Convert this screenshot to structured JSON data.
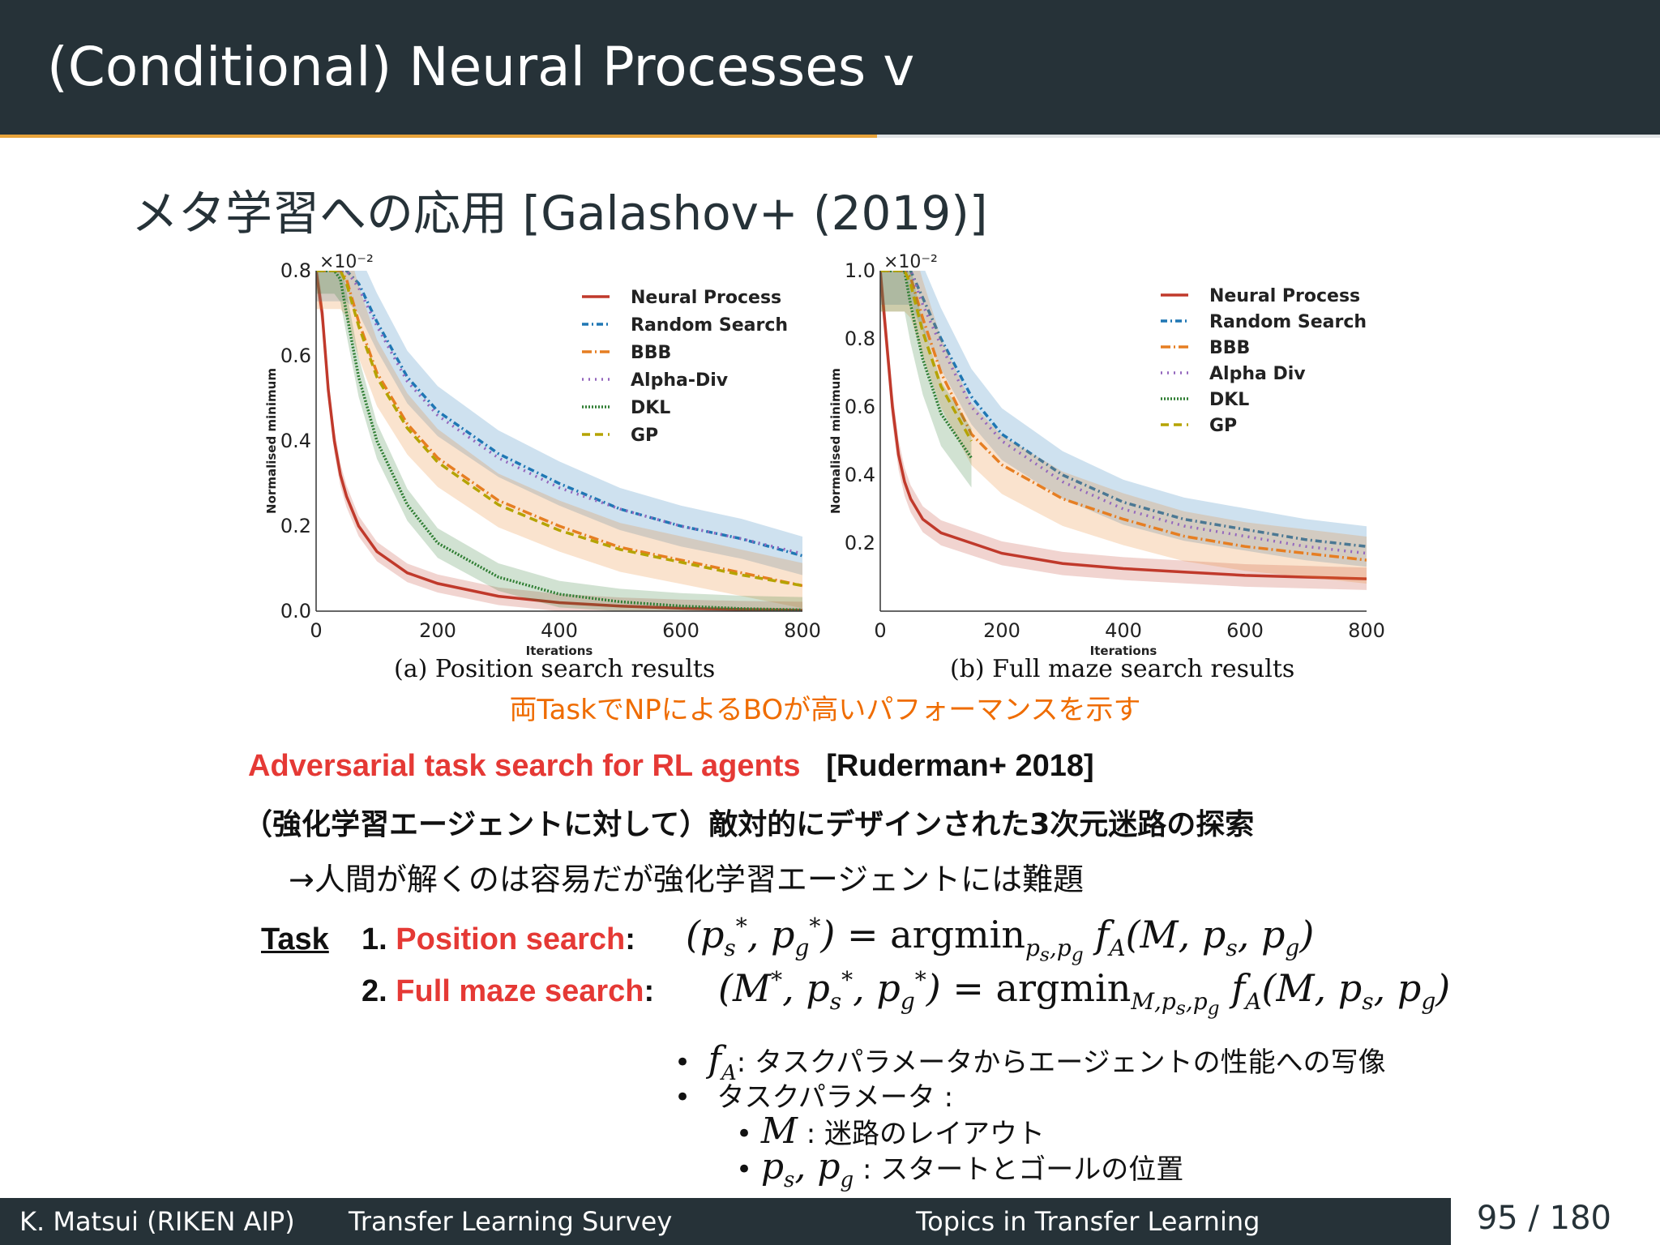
{
  "slide": {
    "title": "(Conditional) Neural Processes v",
    "subtitle": "メタ学習への応用 [Galashov+ (2019)]",
    "highlight": "両TaskでNPによるBOが高いパフォーマンスを示す"
  },
  "captions": {
    "a": "(a)  Position search results",
    "b": "(b)  Full maze search results"
  },
  "text": {
    "heading_red": "Adversarial task search for RL agents",
    "heading_ref": "[Ruderman+ 2018]",
    "line1": "（強化学習エージェントに対して）敵対的にデザインされた3次元迷路の探索",
    "line2": "→人間が解くのは容易だが強化学習エージェントには難題",
    "task_label": "Task",
    "t1_num": "1.",
    "t1_name": "Position search",
    "t1_colon": ":",
    "t2_num": "2.",
    "t2_name": "Full maze search",
    "t2_colon": ":",
    "b1": ": タスクパラメータからエージェントの性能への写像",
    "b2": "タスクパラメータ :",
    "b3": ": 迷路のレイアウト",
    "b4": ": スタートとゴールの位置"
  },
  "footer": {
    "author": "K. Matsui (RIKEN AIP)",
    "talk": "Transfer Learning Survey",
    "section": "Topics in Transfer Learning",
    "page": "95 / 180"
  },
  "chart_data": [
    {
      "type": "line",
      "caption": "(a) Position search results",
      "xlabel": "Iterations",
      "ylabel": "Normalised minimum",
      "scale_label": "×10⁻²",
      "xlim": [
        0,
        800
      ],
      "ylim": [
        0,
        0.8
      ],
      "xticks": [
        0,
        200,
        400,
        600,
        800
      ],
      "yticks": [
        0.0,
        0.2,
        0.4,
        0.6,
        0.8
      ],
      "legend_position": "top-right",
      "x": [
        0,
        10,
        20,
        30,
        40,
        50,
        70,
        100,
        150,
        200,
        300,
        400,
        500,
        600,
        700,
        800
      ],
      "series": [
        {
          "name": "Neural Process",
          "color": "#c0392b",
          "dash": "solid",
          "band": 0.02,
          "values": [
            0.8,
            0.7,
            0.52,
            0.4,
            0.32,
            0.27,
            0.2,
            0.14,
            0.09,
            0.065,
            0.035,
            0.02,
            0.012,
            0.007,
            0.004,
            0.002
          ]
        },
        {
          "name": "Random Search",
          "color": "#1f77b4",
          "dash": "8,4,2,4",
          "band": 0.04,
          "values": [
            0.8,
            0.8,
            0.8,
            0.8,
            0.8,
            0.8,
            0.77,
            0.68,
            0.55,
            0.47,
            0.37,
            0.3,
            0.24,
            0.2,
            0.17,
            0.13
          ]
        },
        {
          "name": "BBB",
          "color": "#e67e22",
          "dash": "12,4,2,4",
          "band": 0.05,
          "values": [
            0.8,
            0.8,
            0.8,
            0.8,
            0.8,
            0.78,
            0.68,
            0.56,
            0.44,
            0.36,
            0.26,
            0.2,
            0.15,
            0.12,
            0.09,
            0.06
          ]
        },
        {
          "name": "Alpha-Div",
          "color": "#9467bd",
          "dash": "2,6",
          "band": 0.0,
          "values": [
            0.8,
            0.8,
            0.8,
            0.8,
            0.8,
            0.8,
            0.76,
            0.67,
            0.54,
            0.46,
            0.36,
            0.29,
            0.24,
            0.2,
            0.17,
            0.135
          ]
        },
        {
          "name": "DKL",
          "color": "#2e7d32",
          "dash": "2,2",
          "band": 0.03,
          "values": [
            0.8,
            0.8,
            0.8,
            0.8,
            0.78,
            0.7,
            0.55,
            0.4,
            0.25,
            0.16,
            0.08,
            0.04,
            0.022,
            0.012,
            0.006,
            0.003
          ]
        },
        {
          "name": "GP",
          "color": "#b5a300",
          "dash": "10,6",
          "band": 0.0,
          "values": [
            0.8,
            0.8,
            0.8,
            0.8,
            0.8,
            0.77,
            0.67,
            0.55,
            0.43,
            0.35,
            0.25,
            0.19,
            0.145,
            0.115,
            0.085,
            0.06
          ]
        }
      ]
    },
    {
      "type": "line",
      "caption": "(b) Full maze search results",
      "xlabel": "Iterations",
      "ylabel": "Normalised minimum",
      "scale_label": "×10⁻²",
      "xlim": [
        0,
        800
      ],
      "ylim": [
        0,
        1.0
      ],
      "xticks": [
        0,
        200,
        400,
        600,
        800
      ],
      "yticks": [
        0.2,
        0.4,
        0.6,
        0.8,
        1.0
      ],
      "legend_position": "top-right",
      "x": [
        0,
        10,
        20,
        30,
        40,
        50,
        70,
        100,
        150,
        200,
        300,
        400,
        500,
        600,
        700,
        800
      ],
      "series": [
        {
          "name": "Neural Process",
          "color": "#c0392b",
          "dash": "solid",
          "band": 0.03,
          "values": [
            1.0,
            0.8,
            0.6,
            0.46,
            0.38,
            0.33,
            0.27,
            0.23,
            0.2,
            0.17,
            0.14,
            0.125,
            0.115,
            0.105,
            0.1,
            0.095
          ]
        },
        {
          "name": "Random Search",
          "color": "#1f77b4",
          "dash": "8,4,2,4",
          "band": 0.05,
          "values": [
            1.0,
            1.0,
            1.0,
            1.0,
            1.0,
            1.0,
            0.92,
            0.8,
            0.63,
            0.52,
            0.4,
            0.32,
            0.27,
            0.24,
            0.21,
            0.19
          ]
        },
        {
          "name": "BBB",
          "color": "#e67e22",
          "dash": "12,4,2,4",
          "band": 0.06,
          "values": [
            1.0,
            1.0,
            1.0,
            1.0,
            1.0,
            0.98,
            0.86,
            0.7,
            0.52,
            0.43,
            0.33,
            0.27,
            0.22,
            0.19,
            0.17,
            0.15
          ]
        },
        {
          "name": "Alpha Div",
          "color": "#9467bd",
          "dash": "2,6",
          "band": 0.0,
          "values": [
            1.0,
            1.0,
            1.0,
            1.0,
            1.0,
            1.0,
            0.9,
            0.78,
            0.6,
            0.5,
            0.38,
            0.3,
            0.25,
            0.22,
            0.19,
            0.17
          ]
        },
        {
          "name": "DKL",
          "color": "#2e7d32",
          "dash": "2,2",
          "band": 0.06,
          "values": [
            1.0,
            1.0,
            1.0,
            1.0,
            1.0,
            0.9,
            0.74,
            0.58,
            0.45,
            null,
            null,
            null,
            null,
            null,
            null,
            null
          ]
        },
        {
          "name": "GP",
          "color": "#b5a300",
          "dash": "10,6",
          "band": 0.0,
          "values": [
            1.0,
            1.0,
            1.0,
            1.0,
            1.0,
            0.96,
            0.82,
            0.66,
            0.5,
            null,
            null,
            null,
            null,
            null,
            null,
            null
          ]
        }
      ]
    }
  ]
}
